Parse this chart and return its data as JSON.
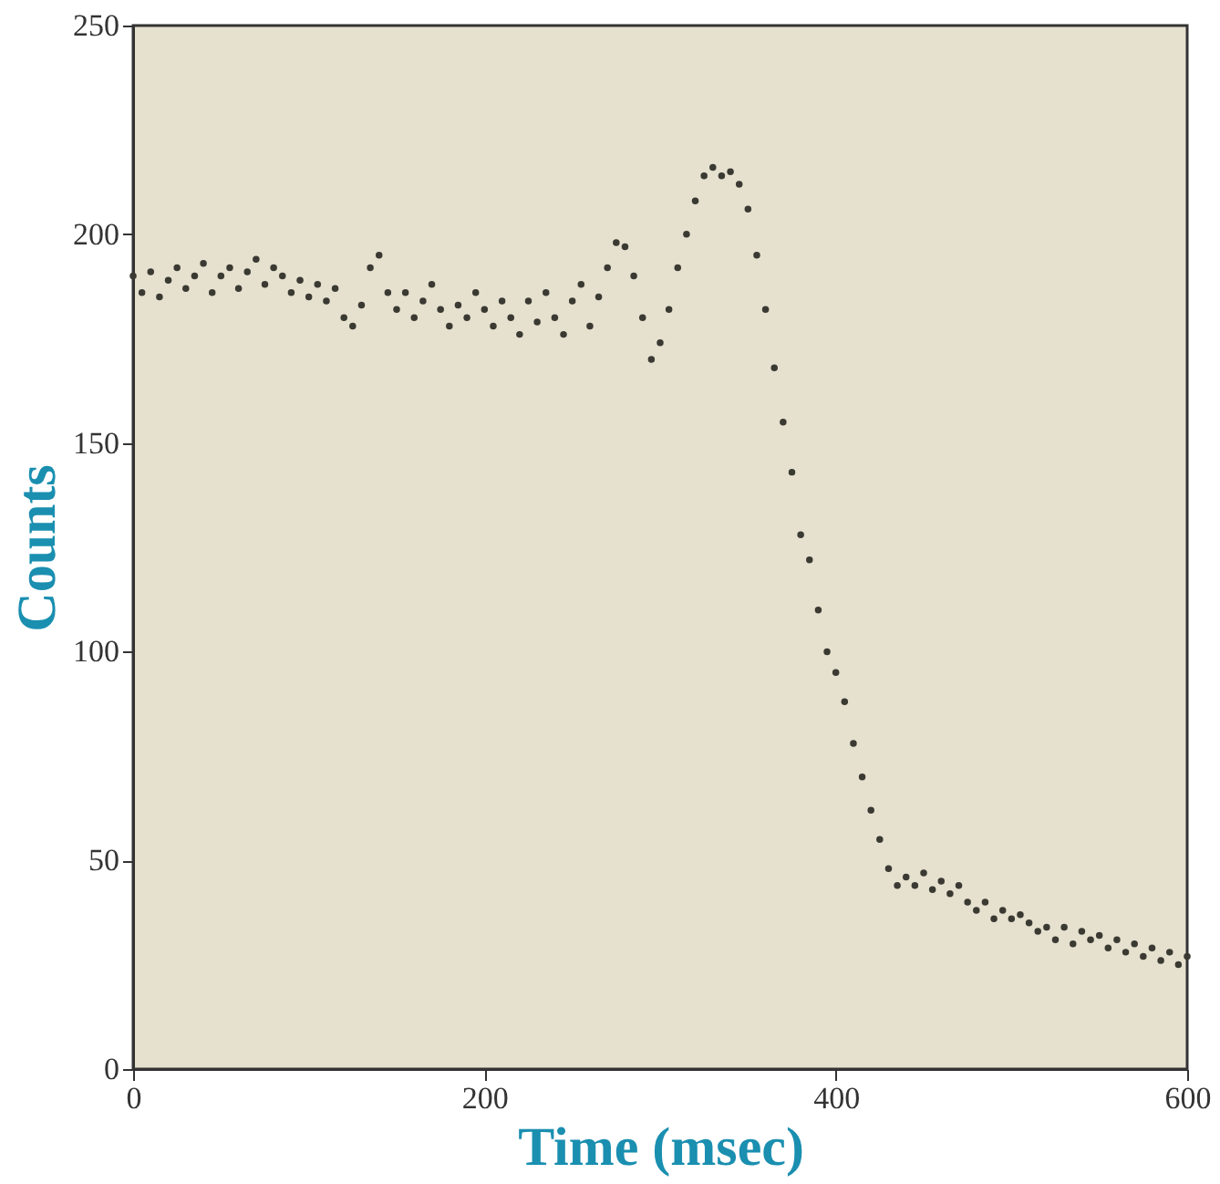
{
  "chart_data": {
    "type": "scatter",
    "xlabel": "Time (msec)",
    "ylabel": "Counts",
    "x": [
      0,
      5,
      10,
      15,
      20,
      25,
      30,
      35,
      40,
      45,
      50,
      55,
      60,
      65,
      70,
      75,
      80,
      85,
      90,
      95,
      100,
      105,
      110,
      115,
      120,
      125,
      130,
      135,
      140,
      145,
      150,
      155,
      160,
      165,
      170,
      175,
      180,
      185,
      190,
      195,
      200,
      205,
      210,
      215,
      220,
      225,
      230,
      235,
      240,
      245,
      250,
      255,
      260,
      265,
      270,
      275,
      280,
      285,
      290,
      295,
      300,
      305,
      310,
      315,
      320,
      325,
      330,
      335,
      340,
      345,
      350,
      355,
      360,
      365,
      370,
      375,
      380,
      385,
      390,
      395,
      400,
      405,
      410,
      415,
      420,
      425,
      430,
      435,
      440,
      445,
      450,
      455,
      460,
      465,
      470,
      475,
      480,
      485,
      490,
      495,
      500,
      505,
      510,
      515,
      520,
      525,
      530,
      535,
      540,
      545,
      550,
      555,
      560,
      565,
      570,
      575,
      580,
      585,
      590,
      595,
      600
    ],
    "series": [
      {
        "color": "#3a3a32",
        "values": [
          190,
          186,
          191,
          185,
          189,
          192,
          187,
          190,
          193,
          186,
          190,
          192,
          187,
          191,
          194,
          188,
          192,
          190,
          186,
          189,
          185,
          188,
          184,
          187,
          180,
          178,
          183,
          192,
          195,
          186,
          182,
          186,
          180,
          184,
          188,
          182,
          178,
          183,
          180,
          186,
          182,
          178,
          184,
          180,
          176,
          184,
          179,
          186,
          180,
          176,
          184,
          188,
          178,
          185,
          192,
          198,
          197,
          190,
          180,
          170,
          174,
          182,
          192,
          200,
          208,
          214,
          216,
          214,
          215,
          212,
          206,
          195,
          182,
          168,
          155,
          143,
          128,
          122,
          110,
          100,
          95,
          88,
          78,
          70,
          62,
          55,
          48,
          44,
          46,
          44,
          47,
          43,
          45,
          42,
          44,
          40,
          38,
          40,
          36,
          38,
          36,
          37,
          35,
          33,
          34,
          31,
          34,
          30,
          33,
          31,
          32,
          29,
          31,
          28,
          30,
          27,
          29,
          26,
          28,
          25,
          27
        ]
      }
    ],
    "xlim": [
      0,
      600
    ],
    "ylim": [
      0,
      250
    ],
    "xticks": [
      0,
      200,
      400,
      600
    ],
    "yticks": [
      0,
      50,
      100,
      150,
      200,
      250
    ],
    "marker": "circle",
    "grid": false
  }
}
